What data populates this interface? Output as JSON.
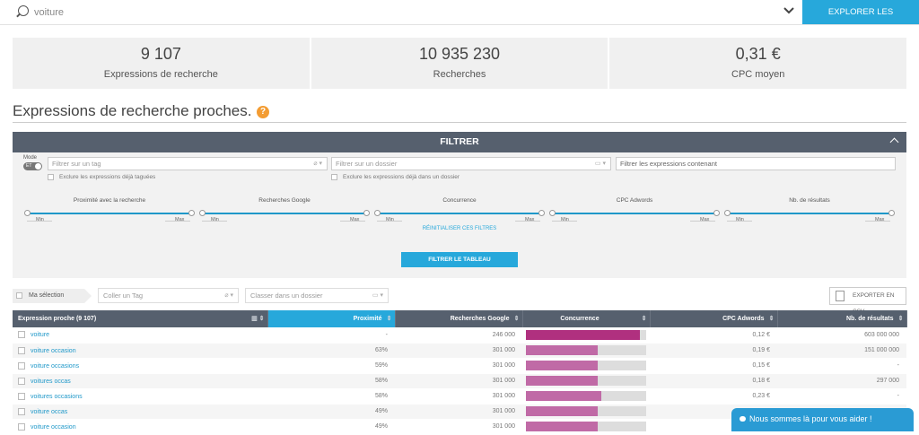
{
  "search": {
    "value": "voiture"
  },
  "explore_button": "EXPLORER LES RECHERCHES",
  "stats": [
    {
      "value": "9 107",
      "label": "Expressions de recherche"
    },
    {
      "value": "10 935 230",
      "label": "Recherches"
    },
    {
      "value": "0,31 €",
      "label": "CPC moyen"
    }
  ],
  "section_title": "Expressions de recherche proches.",
  "help_glyph": "?",
  "filter": {
    "title": "FILTRER",
    "mode_label": "Mode",
    "toggle_text": "ET",
    "tag_placeholder": "Filtrer sur un tag",
    "folder_placeholder": "Filtrer sur un dossier",
    "contains_placeholder": "Filtrer les expressions contenant",
    "exclude_tagged": "Exclure les expressions déjà taguées",
    "exclude_folder": "Exclure les expressions déjà dans un dossier",
    "sliders": [
      {
        "label": "Proximité avec la recherche",
        "min": "Min",
        "max": "Max"
      },
      {
        "label": "Recherches Google",
        "min": "Min",
        "max": "Max"
      },
      {
        "label": "Concurrence",
        "min": "Min",
        "max": "Max"
      },
      {
        "label": "CPC Adwords",
        "min": "Min",
        "max": "Max"
      },
      {
        "label": "Nb. de résultats",
        "min": "Min",
        "max": "Max"
      }
    ],
    "reset": "RÉINITIALISER CES FILTRES",
    "apply": "FILTRER LE TABLEAU"
  },
  "toolbar": {
    "my_selection": "Ma sélection",
    "tag_placeholder": "Coller un Tag",
    "folder_placeholder": "Classer dans un dossier",
    "export": "EXPORTER EN CSV"
  },
  "table": {
    "headers": [
      "Expression proche (9 107)",
      "Proximité",
      "Recherches Google",
      "Concurrence",
      "CPC Adwords",
      "Nb. de résultats"
    ],
    "rows": [
      {
        "kw": "voiture",
        "prox": "-",
        "searches": "246 000",
        "competition": 0.95,
        "cpc": "0,12 €",
        "results": "603 000 000"
      },
      {
        "kw": "voiture occasion",
        "prox": "63%",
        "searches": "301 000",
        "competition": 0.6,
        "cpc": "0,19 €",
        "results": "151 000 000"
      },
      {
        "kw": "voiture occasions",
        "prox": "59%",
        "searches": "301 000",
        "competition": 0.6,
        "cpc": "0,15 €",
        "results": "-"
      },
      {
        "kw": "voitures occas",
        "prox": "58%",
        "searches": "301 000",
        "competition": 0.6,
        "cpc": "0,18 €",
        "results": "297 000"
      },
      {
        "kw": "voitures occasions",
        "prox": "58%",
        "searches": "301 000",
        "competition": 0.63,
        "cpc": "0,23 €",
        "results": "-"
      },
      {
        "kw": "voiture occas",
        "prox": "49%",
        "searches": "301 000",
        "competition": 0.6,
        "cpc": "0,14 €",
        "results": "-"
      },
      {
        "kw": "voiture occasion",
        "prox": "49%",
        "searches": "301 000",
        "competition": 0.6,
        "cpc": "",
        "results": ""
      }
    ]
  },
  "chat": "Nous sommes là pour vous aider !",
  "colors": {
    "accent": "#27a8db",
    "header": "#56606e",
    "bar": "#c06aa6"
  }
}
